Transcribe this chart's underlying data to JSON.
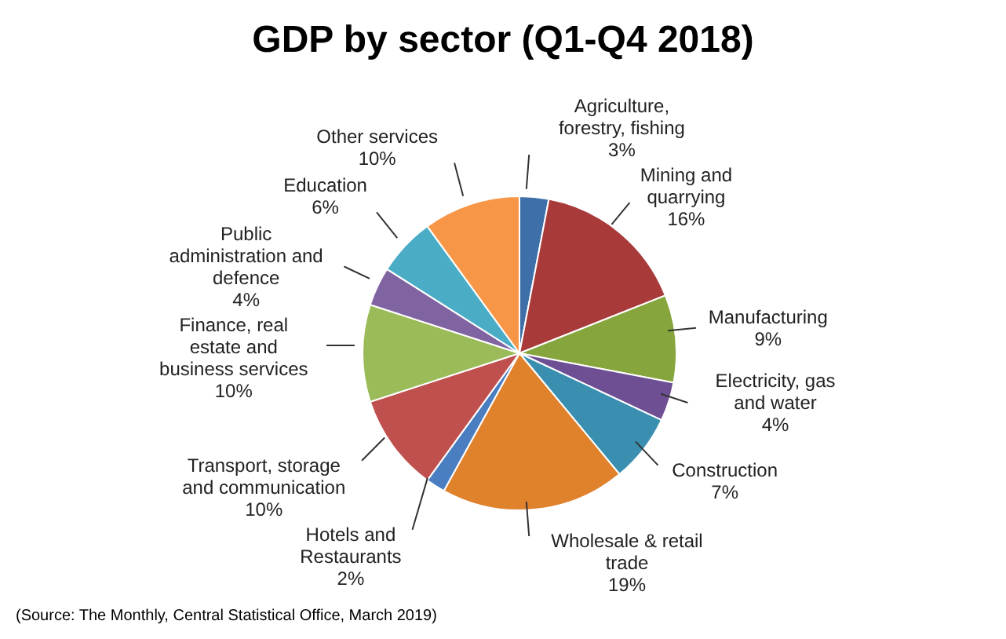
{
  "chart_data": {
    "type": "pie",
    "title": "GDP by sector (Q1-Q4 2018)",
    "categories": [
      "Agriculture, forestry, fishing",
      "Mining and quarrying",
      "Manufacturing",
      "Electricity, gas and water",
      "Construction",
      "Wholesale & retail trade",
      "Hotels and Restaurants",
      "Transport, storage and communication",
      "Finance,  real estate and business services",
      "Public administration and defence",
      "Education",
      "Other services"
    ],
    "values": [
      3,
      16,
      9,
      4,
      7,
      19,
      2,
      10,
      10,
      4,
      6,
      10
    ],
    "value_labels": [
      "3%",
      "16%",
      "9%",
      "4%",
      "7%",
      "19%",
      "2%",
      "10%",
      "10%",
      "4%",
      "6%",
      "10%"
    ],
    "colors": [
      "#3e6fa8",
      "#a83a3a",
      "#86a53c",
      "#6e4f94",
      "#3a8fb0",
      "#e0812c",
      "#4a7ec0",
      "#c0504d",
      "#9bbb59",
      "#8064a2",
      "#4bacc6",
      "#f79646"
    ],
    "legend": false,
    "annotations": [
      "(Source: The Monthly, Central Statistical Office, March 2019)"
    ]
  }
}
